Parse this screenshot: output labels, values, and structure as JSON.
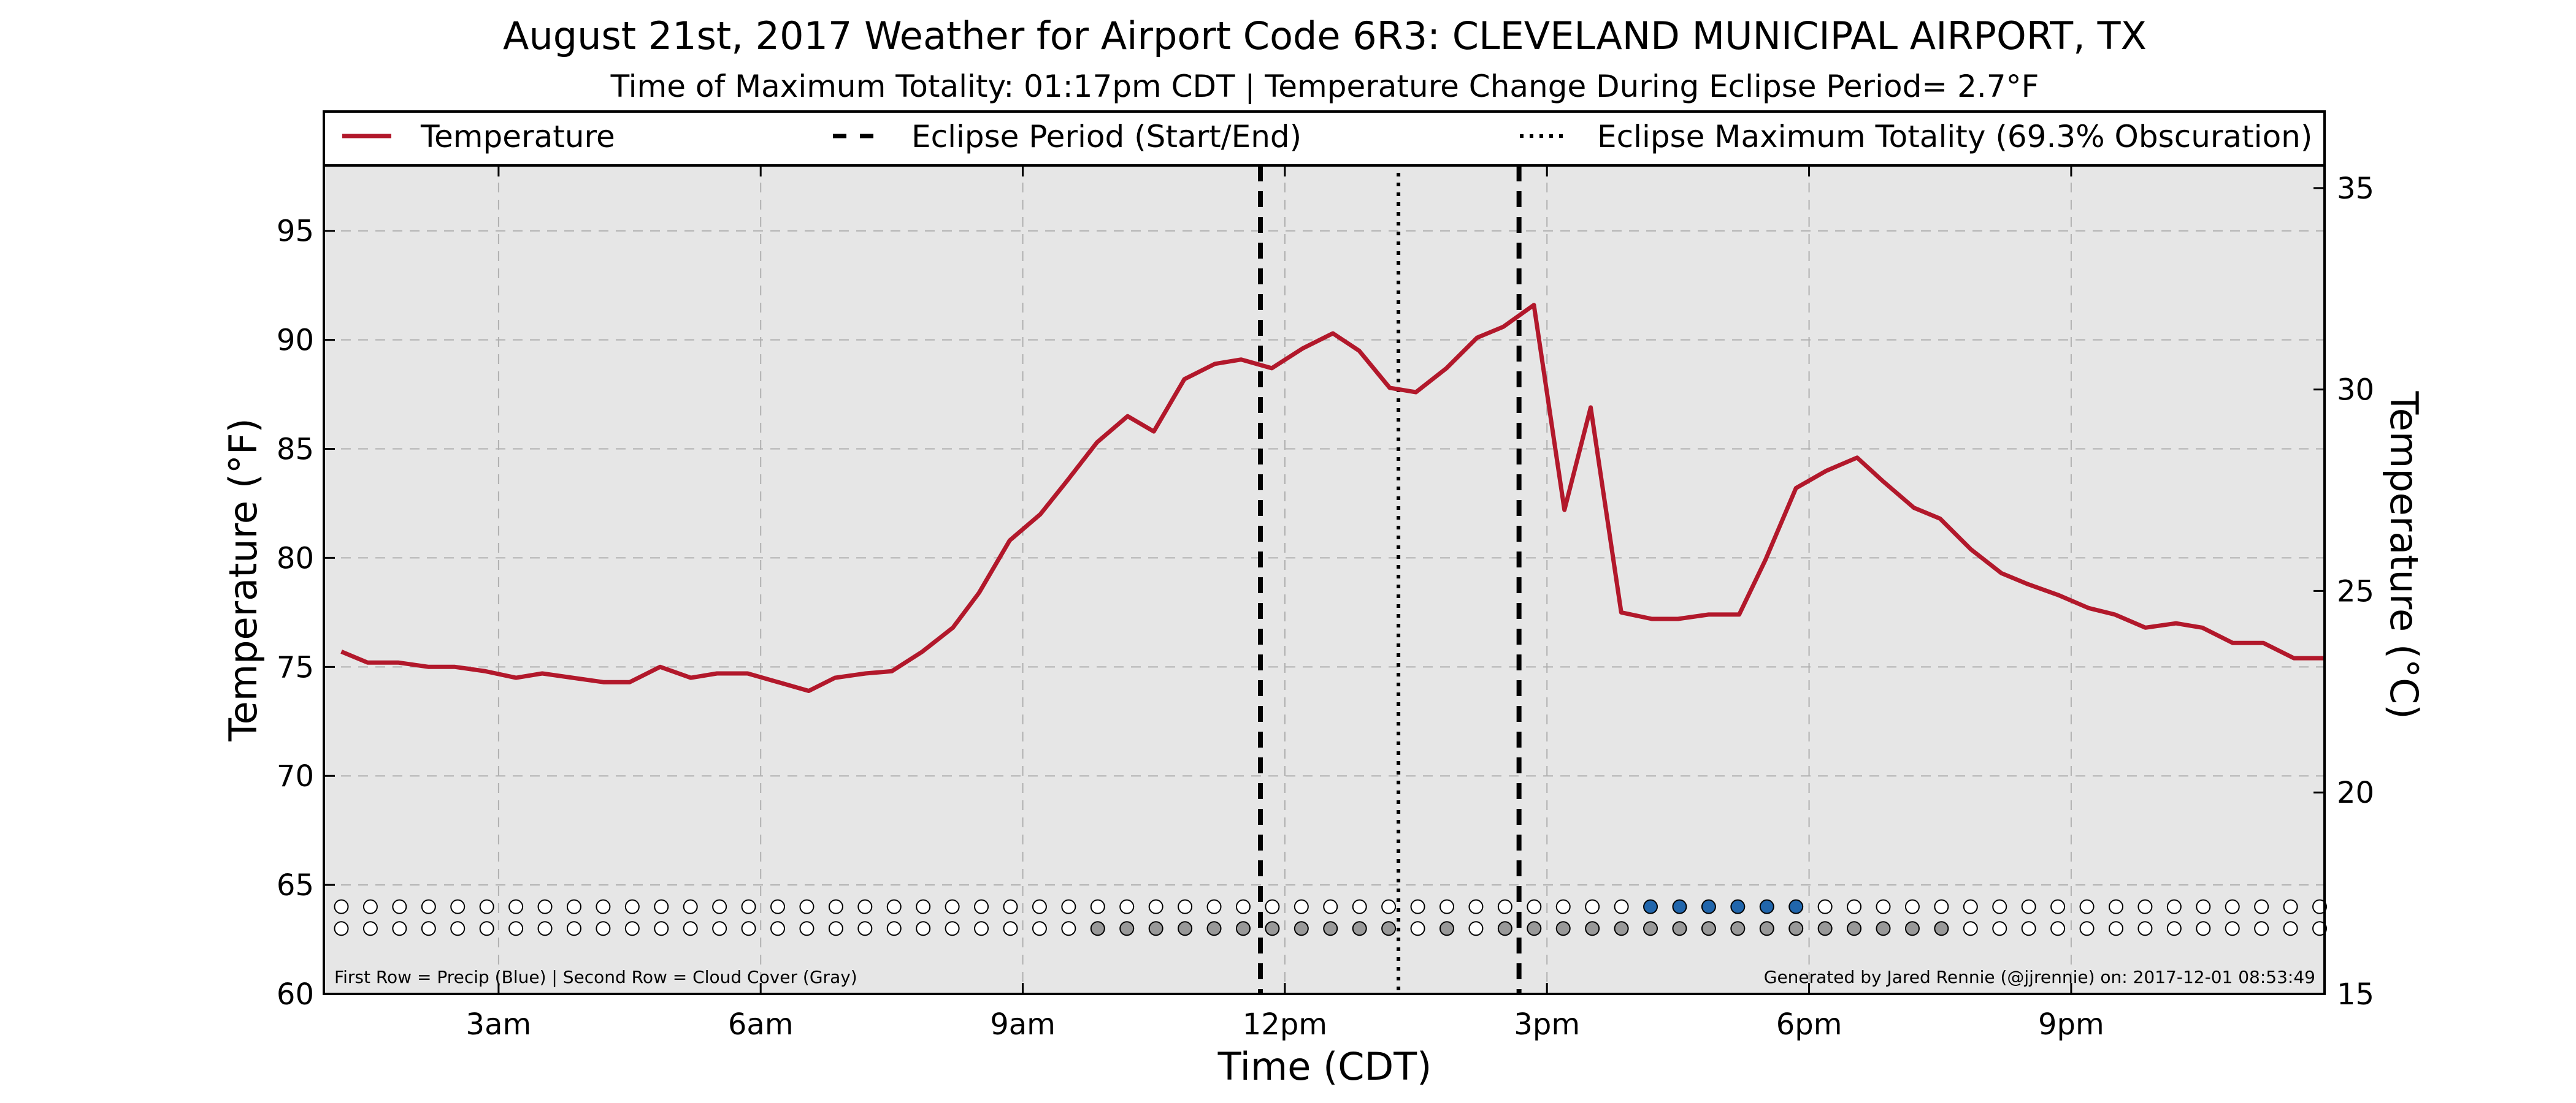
{
  "chart_data": {
    "type": "line",
    "title": "August 21st, 2017 Weather for Airport Code 6R3: CLEVELAND MUNICIPAL AIRPORT, TX",
    "subtitle": "Time of Maximum Totality: 01:17pm CDT | Temperature Change During Eclipse Period= 2.7°F",
    "xlabel": "Time (CDT)",
    "ylabel": "Temperature (°F)",
    "ylabel_right": "Temperature (°C)",
    "x_unit": "hours after midnight (CDT)",
    "xlim": [
      1,
      23.9
    ],
    "ylim": [
      60,
      98
    ],
    "ylim_right": [
      15,
      35.56
    ],
    "x_ticks": [
      {
        "x": 3,
        "label": "3am"
      },
      {
        "x": 6,
        "label": "6am"
      },
      {
        "x": 9,
        "label": "9am"
      },
      {
        "x": 12,
        "label": "12pm"
      },
      {
        "x": 15,
        "label": "3pm"
      },
      {
        "x": 18,
        "label": "6pm"
      },
      {
        "x": 21,
        "label": "9pm"
      }
    ],
    "y_ticks": [
      60,
      65,
      70,
      75,
      80,
      85,
      90,
      95
    ],
    "y_ticks_right": [
      15,
      20,
      25,
      30,
      35
    ],
    "grid": true,
    "legend_position": "top, spanning the plot width",
    "legend": [
      {
        "label": "Temperature",
        "style": "solid",
        "color": "#b2182b"
      },
      {
        "label": "Eclipse Period (Start/End)",
        "style": "dashed",
        "color": "#000000"
      },
      {
        "label": "Eclipse Maximum Totality (69.3% Obscuration)",
        "style": "dotted",
        "color": "#000000"
      }
    ],
    "eclipse_start": 11.72,
    "eclipse_max": 13.3,
    "eclipse_end": 14.68,
    "series": [
      {
        "name": "Temperature",
        "color": "#b2182b",
        "points": [
          [
            1.2,
            75.7
          ],
          [
            1.5,
            75.2
          ],
          [
            1.85,
            75.2
          ],
          [
            2.2,
            75.0
          ],
          [
            2.5,
            75.0
          ],
          [
            2.85,
            74.8
          ],
          [
            3.2,
            74.5
          ],
          [
            3.5,
            74.7
          ],
          [
            3.85,
            74.5
          ],
          [
            4.2,
            74.3
          ],
          [
            4.5,
            74.3
          ],
          [
            4.85,
            75.0
          ],
          [
            5.2,
            74.5
          ],
          [
            5.5,
            74.7
          ],
          [
            5.85,
            74.7
          ],
          [
            6.2,
            74.3
          ],
          [
            6.55,
            73.9
          ],
          [
            6.85,
            74.5
          ],
          [
            7.2,
            74.7
          ],
          [
            7.5,
            74.8
          ],
          [
            7.85,
            75.7
          ],
          [
            8.2,
            76.8
          ],
          [
            8.5,
            78.4
          ],
          [
            8.85,
            80.8
          ],
          [
            9.2,
            82.0
          ],
          [
            9.5,
            83.5
          ],
          [
            9.85,
            85.3
          ],
          [
            10.2,
            86.5
          ],
          [
            10.5,
            85.8
          ],
          [
            10.85,
            88.2
          ],
          [
            11.2,
            88.9
          ],
          [
            11.5,
            89.1
          ],
          [
            11.85,
            88.7
          ],
          [
            12.2,
            89.6
          ],
          [
            12.55,
            90.3
          ],
          [
            12.85,
            89.5
          ],
          [
            13.2,
            87.8
          ],
          [
            13.5,
            87.6
          ],
          [
            13.85,
            88.7
          ],
          [
            14.2,
            90.1
          ],
          [
            14.5,
            90.6
          ],
          [
            14.85,
            91.6
          ],
          [
            15.2,
            82.2
          ],
          [
            15.5,
            86.9
          ],
          [
            15.85,
            77.5
          ],
          [
            16.2,
            77.2
          ],
          [
            16.5,
            77.2
          ],
          [
            16.85,
            77.4
          ],
          [
            17.2,
            77.4
          ],
          [
            17.5,
            79.9
          ],
          [
            17.85,
            83.2
          ],
          [
            18.2,
            84.0
          ],
          [
            18.55,
            84.6
          ],
          [
            18.85,
            83.5
          ],
          [
            19.2,
            82.3
          ],
          [
            19.5,
            81.8
          ],
          [
            19.85,
            80.4
          ],
          [
            20.2,
            79.3
          ],
          [
            20.5,
            78.8
          ],
          [
            20.85,
            78.3
          ],
          [
            21.2,
            77.7
          ],
          [
            21.5,
            77.4
          ],
          [
            21.85,
            76.8
          ],
          [
            22.2,
            77.0
          ],
          [
            22.5,
            76.8
          ],
          [
            22.85,
            76.1
          ],
          [
            23.2,
            76.1
          ],
          [
            23.55,
            75.4
          ],
          [
            23.9,
            75.4
          ]
        ]
      }
    ],
    "markers": {
      "precip_y": 64,
      "cloud_y": 63,
      "x_start": 1.2,
      "x_step": 0.333,
      "count": 69,
      "precip_filled": [
        45,
        46,
        47,
        48,
        49,
        50
      ],
      "cloud_filled": [
        26,
        27,
        28,
        29,
        30,
        31,
        32,
        33,
        34,
        35,
        36,
        38,
        40,
        41,
        42,
        43,
        44,
        45,
        46,
        47,
        48,
        49,
        50,
        51,
        52,
        53,
        54,
        55
      ],
      "precip_color": "#2166ac",
      "cloud_color": "#999999",
      "empty_color": "#ffffff"
    },
    "colors": {
      "plot_bg": "#e6e6e6",
      "line": "#b2182b",
      "grid": "#b0b0b0"
    },
    "footnote_left": "First Row = Precip (Blue) | Second Row = Cloud Cover (Gray)",
    "footnote_right": "Generated by Jared Rennie (@jjrennie) on: 2017-12-01 08:53:49"
  }
}
